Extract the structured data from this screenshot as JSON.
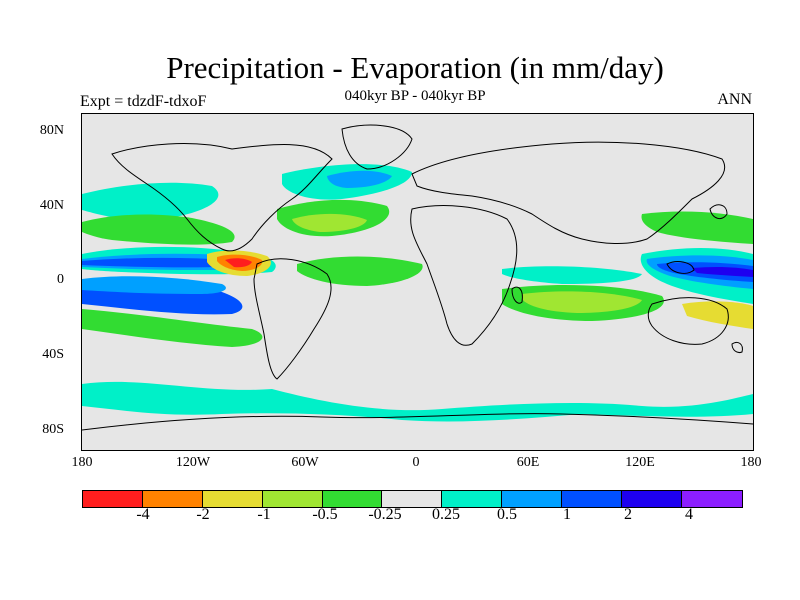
{
  "title": "Precipitation - Evaporation (in mm/day)",
  "subtitle": "040kyr BP - 040kyr BP",
  "experiment_label": "Expt = tdzdF-tdxoF",
  "season_label": "ANN",
  "y_axis": {
    "ticks": [
      "80N",
      "40N",
      "0",
      "40S",
      "80S"
    ]
  },
  "x_axis": {
    "ticks": [
      "180",
      "120W",
      "60W",
      "0",
      "60E",
      "120E",
      "180"
    ]
  },
  "colorbar": {
    "colors": [
      "#ff1e1e",
      "#ff8200",
      "#e6dc32",
      "#a0e632",
      "#32dc32",
      "#e6e6e6",
      "#00f0c8",
      "#00a0ff",
      "#0050ff",
      "#1e00f0",
      "#8c1eff"
    ],
    "labels": [
      "-4",
      "-2",
      "-1",
      "-0.5",
      "-0.25",
      "0.25",
      "0.5",
      "1",
      "2",
      "4"
    ]
  },
  "chart_data": {
    "type": "heatmap",
    "title": "Precipitation - Evaporation (in mm/day)",
    "subtitle": "040kyr BP - 040kyr BP",
    "lon_range": [
      -180,
      180
    ],
    "lat_range": [
      -90,
      90
    ],
    "levels": [
      -4,
      -2,
      -1,
      -0.5,
      -0.25,
      0.25,
      0.5,
      1,
      2,
      4
    ],
    "background_value_range": [
      -0.25,
      0.25
    ]
  }
}
